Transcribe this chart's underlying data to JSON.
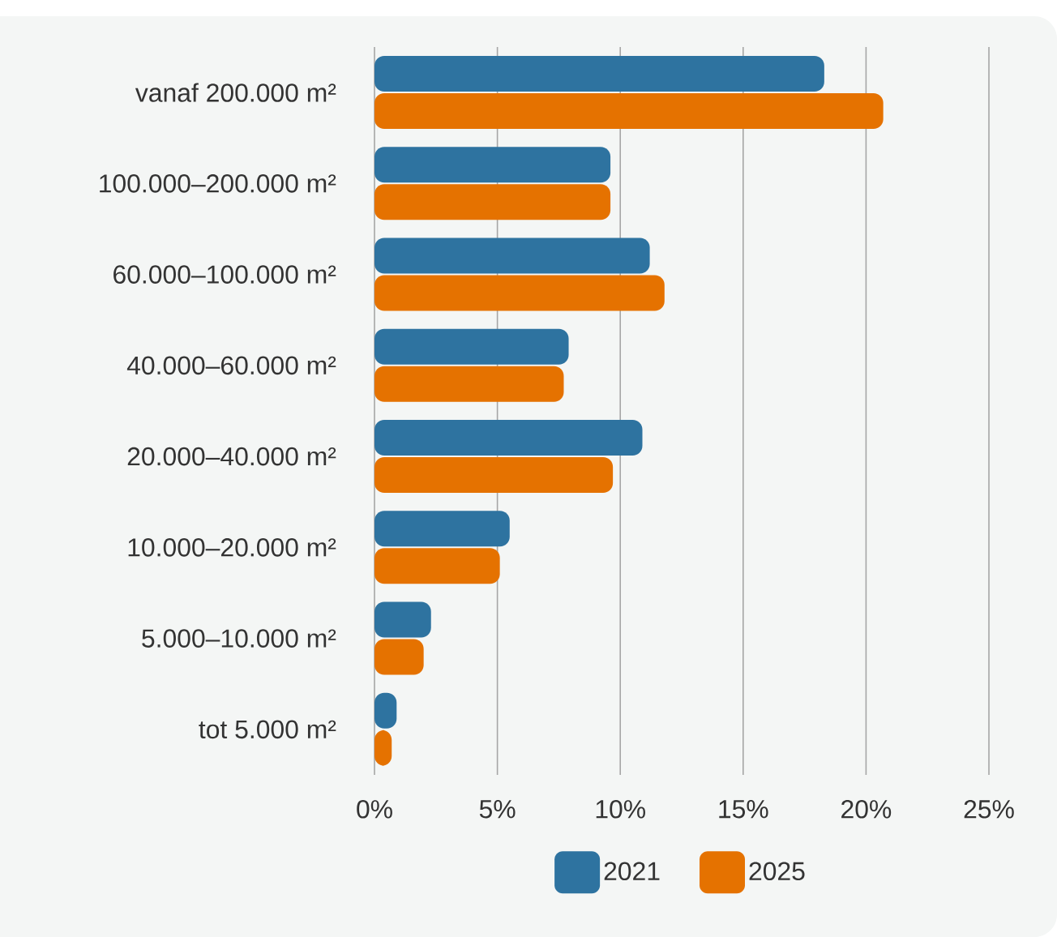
{
  "chart_data": {
    "type": "bar",
    "orientation": "horizontal",
    "categories": [
      "vanaf 200.000 m²",
      "100.000–200.000 m²",
      "60.000–100.000 m²",
      "40.000–60.000 m²",
      "20.000–40.000 m²",
      "10.000–20.000 m²",
      "5.000–10.000 m²",
      "tot 5.000 m²"
    ],
    "series": [
      {
        "name": "2021",
        "color": "#2e73a0",
        "values": [
          18.3,
          9.6,
          11.2,
          7.9,
          10.9,
          5.5,
          2.3,
          0.9
        ]
      },
      {
        "name": "2025",
        "color": "#e57200",
        "values": [
          20.7,
          9.6,
          11.8,
          7.7,
          9.7,
          5.1,
          2.0,
          0.7
        ]
      }
    ],
    "xlim": [
      0,
      25
    ],
    "xticks": [
      {
        "value": 0,
        "label": "0%"
      },
      {
        "value": 5,
        "label": "5%"
      },
      {
        "value": 10,
        "label": "10%"
      },
      {
        "value": 15,
        "label": "15%"
      },
      {
        "value": 20,
        "label": "20%"
      },
      {
        "value": 25,
        "label": "25%"
      }
    ],
    "grid": "x",
    "legend": "bottom"
  }
}
